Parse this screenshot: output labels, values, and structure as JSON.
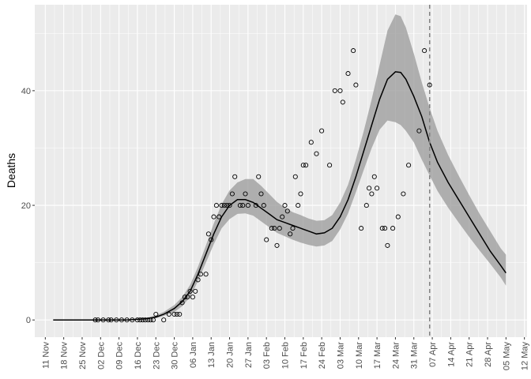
{
  "chart_data": {
    "type": "scatter",
    "title": "",
    "xlabel": "",
    "ylabel": "Deaths",
    "xlim": [
      "2020-11-07",
      "2021-05-13"
    ],
    "ylim": [
      -3,
      55
    ],
    "grid": true,
    "background": "#ebebeb",
    "x_ticks": [
      "2020-11-11",
      "2020-11-18",
      "2020-11-25",
      "2020-12-02",
      "2020-12-09",
      "2020-12-16",
      "2020-12-23",
      "2020-12-30",
      "2021-01-06",
      "2021-01-13",
      "2021-01-20",
      "2021-01-27",
      "2021-02-03",
      "2021-02-10",
      "2021-02-17",
      "2021-02-24",
      "2021-03-03",
      "2021-03-10",
      "2021-03-17",
      "2021-03-24",
      "2021-03-31",
      "2021-04-07",
      "2021-04-14",
      "2021-04-21",
      "2021-04-28",
      "2021-05-05",
      "2021-05-12"
    ],
    "x_tick_labels": [
      "11 Nov",
      "18 Nov",
      "25 Nov",
      "02 Dec",
      "09 Dec",
      "16 Dec",
      "23 Dec",
      "30 Dec",
      "06 Jan",
      "13 Jan",
      "20 Jan",
      "27 Jan",
      "03 Feb",
      "10 Feb",
      "17 Feb",
      "24 Feb",
      "03 Mar",
      "10 Mar",
      "17 Mar",
      "24 Mar",
      "31 Mar",
      "07 Apr",
      "14 Apr",
      "21 Apr",
      "28 Apr",
      "05 May",
      "12 May"
    ],
    "y_ticks": [
      0,
      20,
      40
    ],
    "y_tick_labels": [
      "0",
      "20",
      "40"
    ],
    "vline": {
      "x": "2021-04-06",
      "style": "dashed",
      "color": "#808080"
    },
    "points": {
      "name": "observed",
      "x": [
        "2020-11-30",
        "2020-12-01",
        "2020-12-03",
        "2020-12-05",
        "2020-12-06",
        "2020-12-08",
        "2020-12-10",
        "2020-12-12",
        "2020-12-14",
        "2020-12-16",
        "2020-12-17",
        "2020-12-18",
        "2020-12-19",
        "2020-12-20",
        "2020-12-21",
        "2020-12-22",
        "2020-12-23",
        "2020-12-26",
        "2020-12-28",
        "2020-12-30",
        "2020-12-31",
        "2021-01-01",
        "2021-01-02",
        "2021-01-03",
        "2021-01-04",
        "2021-01-05",
        "2021-01-06",
        "2021-01-07",
        "2021-01-08",
        "2021-01-09",
        "2021-01-11",
        "2021-01-12",
        "2021-01-13",
        "2021-01-14",
        "2021-01-15",
        "2021-01-16",
        "2021-01-17",
        "2021-01-18",
        "2021-01-19",
        "2021-01-20",
        "2021-01-21",
        "2021-01-22",
        "2021-01-24",
        "2021-01-25",
        "2021-01-26",
        "2021-01-27",
        "2021-01-30",
        "2021-01-31",
        "2021-02-01",
        "2021-02-02",
        "2021-02-03",
        "2021-02-05",
        "2021-02-06",
        "2021-02-07",
        "2021-02-08",
        "2021-02-09",
        "2021-02-10",
        "2021-02-11",
        "2021-02-12",
        "2021-02-13",
        "2021-02-14",
        "2021-02-15",
        "2021-02-16",
        "2021-02-17",
        "2021-02-18",
        "2021-02-20",
        "2021-02-22",
        "2021-02-24",
        "2021-02-27",
        "2021-03-01",
        "2021-03-03",
        "2021-03-04",
        "2021-03-06",
        "2021-03-08",
        "2021-03-09",
        "2021-03-11",
        "2021-03-13",
        "2021-03-14",
        "2021-03-15",
        "2021-03-16",
        "2021-03-17",
        "2021-03-19",
        "2021-03-20",
        "2021-03-21",
        "2021-03-23",
        "2021-03-25",
        "2021-03-27",
        "2021-03-29",
        "2021-04-02",
        "2021-04-04",
        "2021-04-06"
      ],
      "y": [
        0,
        0,
        0,
        0,
        0,
        0,
        0,
        0,
        0,
        0,
        0,
        0,
        0,
        0,
        0,
        0,
        1,
        0,
        1,
        1,
        1,
        1,
        3,
        4,
        4,
        5,
        4,
        5,
        7,
        8,
        8,
        15,
        14,
        18,
        20,
        18,
        20,
        20,
        20,
        20,
        22,
        25,
        20,
        20,
        22,
        20,
        20,
        25,
        22,
        20,
        14,
        16,
        16,
        13,
        16,
        18,
        20,
        19,
        15,
        16,
        25,
        20,
        22,
        27,
        27,
        31,
        29,
        33,
        27,
        40,
        40,
        38,
        43,
        47,
        41,
        16,
        20,
        23,
        22,
        25,
        23,
        16,
        16,
        13,
        16,
        18,
        22,
        27,
        33,
        47,
        41
      ]
    },
    "fit": {
      "name": "fit",
      "x": [
        "2020-11-14",
        "2020-12-01",
        "2020-12-12",
        "2020-12-19",
        "2020-12-23",
        "2020-12-26",
        "2020-12-30",
        "2021-01-02",
        "2021-01-05",
        "2021-01-08",
        "2021-01-11",
        "2021-01-14",
        "2021-01-17",
        "2021-01-20",
        "2021-01-23",
        "2021-01-26",
        "2021-01-29",
        "2021-02-01",
        "2021-02-04",
        "2021-02-07",
        "2021-02-10",
        "2021-02-13",
        "2021-02-16",
        "2021-02-19",
        "2021-02-22",
        "2021-02-25",
        "2021-02-28",
        "2021-03-03",
        "2021-03-06",
        "2021-03-09",
        "2021-03-12",
        "2021-03-15",
        "2021-03-18",
        "2021-03-21",
        "2021-03-24",
        "2021-03-26",
        "2021-03-28",
        "2021-03-31",
        "2021-04-03",
        "2021-04-06",
        "2021-04-09",
        "2021-04-13",
        "2021-04-17",
        "2021-04-21",
        "2021-04-25",
        "2021-04-29",
        "2021-05-03",
        "2021-05-05"
      ],
      "y": [
        0,
        0,
        0,
        0.2,
        0.5,
        1.0,
        2.0,
        3.2,
        5.0,
        8.0,
        11.5,
        15.0,
        18.0,
        20.0,
        21.0,
        21.0,
        20.5,
        19.5,
        18.5,
        17.5,
        17.0,
        16.5,
        16.0,
        15.5,
        15.0,
        15.2,
        16.0,
        18.0,
        21.0,
        25.0,
        29.5,
        34.0,
        38.5,
        42.0,
        43.3,
        43.2,
        42.0,
        39.0,
        35.5,
        31.0,
        27.5,
        24.0,
        21.0,
        18.0,
        15.0,
        12.0,
        9.5,
        8.2
      ],
      "lower": [
        0,
        0,
        0,
        0.1,
        0.3,
        0.7,
        1.4,
        2.4,
        4.0,
        6.8,
        10.0,
        13.2,
        16.0,
        17.6,
        18.5,
        18.6,
        18.2,
        17.2,
        16.2,
        15.2,
        14.6,
        14.0,
        13.5,
        13.1,
        12.8,
        13.0,
        13.8,
        15.8,
        18.6,
        22.3,
        26.2,
        30.0,
        33.2,
        34.8,
        34.5,
        34.0,
        33.0,
        31.0,
        28.0,
        25.2,
        22.5,
        19.6,
        17.0,
        14.5,
        12.1,
        9.8,
        7.4,
        6.0
      ],
      "upper": [
        0,
        0,
        0,
        0.3,
        0.8,
        1.4,
        2.6,
        4.0,
        6.1,
        9.3,
        13.0,
        16.8,
        20.2,
        22.6,
        24.0,
        24.6,
        24.6,
        23.4,
        22.0,
        20.6,
        19.6,
        18.8,
        18.3,
        17.7,
        17.3,
        17.4,
        18.3,
        20.5,
        23.6,
        28.0,
        33.0,
        38.5,
        44.5,
        50.5,
        53.3,
        53.0,
        51.0,
        46.5,
        41.5,
        37.0,
        33.0,
        28.8,
        25.2,
        21.8,
        18.5,
        15.5,
        12.5,
        11.4
      ]
    }
  }
}
